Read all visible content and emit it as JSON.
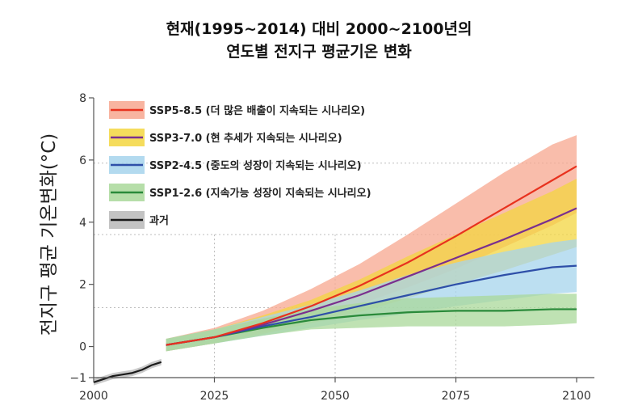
{
  "title_lines": [
    "현재(1995~2014) 대비 2000~2100년의",
    "연도별 전지구 평균기온 변화"
  ],
  "chart_data": {
    "type": "line",
    "title": "현재(1995~2014) 대비 2000~2100년의 연도별 전지구 평균기온 변화",
    "xlabel": "",
    "ylabel": "전지구 평균 기온변화(°C)",
    "xlim": [
      2000,
      2100
    ],
    "ylim": [
      -1,
      8
    ],
    "xticks": [
      2000,
      2025,
      2050,
      2075,
      2100
    ],
    "yticks": [
      -1,
      0,
      2,
      4,
      6,
      8
    ],
    "legend_position": "top-left",
    "grid": "dotted reference lines",
    "series": [
      {
        "name": "SSP5-8.5 (더 많은 배출이 지속되는 시나리오)",
        "color": "#e8321e",
        "band_color": "#f7a78f",
        "x": [
          2015,
          2025,
          2035,
          2045,
          2055,
          2065,
          2075,
          2085,
          2095,
          2100
        ],
        "values": [
          0.05,
          0.3,
          0.75,
          1.3,
          1.95,
          2.7,
          3.55,
          4.45,
          5.35,
          5.8
        ],
        "lower": [
          -0.15,
          0.1,
          0.45,
          0.85,
          1.35,
          1.9,
          2.5,
          3.2,
          3.9,
          4.3
        ],
        "upper": [
          0.25,
          0.6,
          1.15,
          1.85,
          2.65,
          3.6,
          4.6,
          5.6,
          6.5,
          6.8
        ]
      },
      {
        "name": "SSP3-7.0 (현 추세가 지속되는 시나리오)",
        "color": "#7a2f8e",
        "band_color": "#f3d640",
        "x": [
          2015,
          2025,
          2035,
          2045,
          2055,
          2065,
          2075,
          2085,
          2095,
          2100
        ],
        "values": [
          0.05,
          0.3,
          0.7,
          1.15,
          1.65,
          2.25,
          2.85,
          3.45,
          4.1,
          4.45
        ],
        "lower": [
          -0.15,
          0.1,
          0.4,
          0.75,
          1.1,
          1.55,
          2.0,
          2.45,
          2.95,
          3.2
        ],
        "upper": [
          0.25,
          0.55,
          1.0,
          1.5,
          2.15,
          2.9,
          3.6,
          4.3,
          5.0,
          5.4
        ]
      },
      {
        "name": "SSP2-4.5 (중도의 성장이 지속되는 시나리오)",
        "color": "#2e4fa8",
        "band_color": "#a6d4ec",
        "x": [
          2015,
          2025,
          2035,
          2045,
          2055,
          2065,
          2075,
          2085,
          2095,
          2100
        ],
        "values": [
          0.05,
          0.3,
          0.65,
          0.95,
          1.3,
          1.65,
          2.0,
          2.3,
          2.55,
          2.6
        ],
        "lower": [
          -0.15,
          0.1,
          0.35,
          0.6,
          0.85,
          1.05,
          1.3,
          1.5,
          1.7,
          1.75
        ],
        "upper": [
          0.25,
          0.55,
          0.95,
          1.35,
          1.8,
          2.3,
          2.7,
          3.05,
          3.35,
          3.45
        ]
      },
      {
        "name": "SSP1-2.6 (지속가능 성장이 지속되는 시나리오)",
        "color": "#2a8a3a",
        "band_color": "#a9d89a",
        "x": [
          2015,
          2025,
          2035,
          2045,
          2055,
          2065,
          2075,
          2085,
          2095,
          2100
        ],
        "values": [
          0.05,
          0.3,
          0.6,
          0.85,
          1.0,
          1.1,
          1.15,
          1.15,
          1.2,
          1.2
        ],
        "lower": [
          -0.15,
          0.1,
          0.35,
          0.55,
          0.6,
          0.65,
          0.65,
          0.65,
          0.7,
          0.75
        ],
        "upper": [
          0.25,
          0.55,
          0.9,
          1.2,
          1.4,
          1.55,
          1.6,
          1.65,
          1.7,
          1.7
        ]
      },
      {
        "name": "과거",
        "color": "#1a1a1a",
        "band_color": "#b8b8b8",
        "x": [
          2000,
          2002,
          2004,
          2006,
          2008,
          2010,
          2012,
          2014
        ],
        "values": [
          -1.15,
          -1.05,
          -0.95,
          -0.9,
          -0.85,
          -0.75,
          -0.6,
          -0.5
        ],
        "lower": [
          -1.25,
          -1.15,
          -1.05,
          -1.0,
          -0.95,
          -0.85,
          -0.7,
          -0.6
        ],
        "upper": [
          -1.05,
          -0.95,
          -0.85,
          -0.8,
          -0.75,
          -0.65,
          -0.5,
          -0.4
        ]
      }
    ],
    "reference_lines": [
      {
        "axis": "x",
        "value": 2025
      },
      {
        "axis": "x",
        "value": 2050
      },
      {
        "axis": "x",
        "value": 2075
      },
      {
        "axis": "y",
        "value": -1.0
      },
      {
        "axis": "y",
        "value": 1.25
      },
      {
        "axis": "y",
        "value": 3.6
      },
      {
        "axis": "y",
        "value": 5.9
      }
    ]
  }
}
